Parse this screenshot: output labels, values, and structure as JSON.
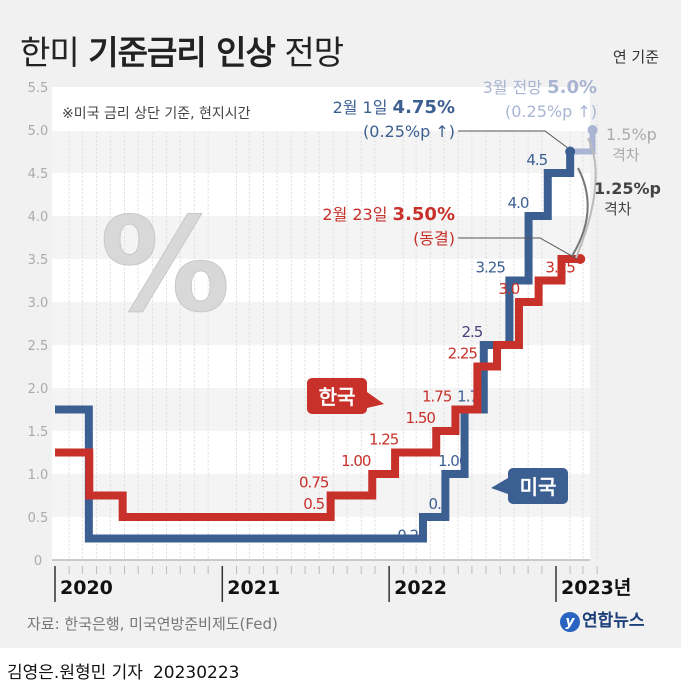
{
  "title": {
    "prefix": "한미",
    "bold": "기준금리 인상",
    "suffix": "전망"
  },
  "unit_note": "연 기준",
  "note": "※미국 금리 상단 기준, 현지시간",
  "source": "자료: 한국은행, 미국연방준비제도(Fed)",
  "logo": {
    "mark": "y",
    "text": "연합뉴스"
  },
  "credit": {
    "authors": "김영은.원형민 기자",
    "date": "20230223"
  },
  "colors": {
    "us": "#3c5f92",
    "korea": "#c8302a",
    "projection": "#a9b5d3",
    "gap": "#8a8a8a"
  },
  "chart_data": {
    "type": "line",
    "step": true,
    "ylim": [
      0,
      5.5
    ],
    "yticks": [
      "0",
      "0.5",
      "1.0",
      "1.5",
      "2.0",
      "2.5",
      "3.0",
      "3.5",
      "4.0",
      "4.5",
      "5.0",
      "5.5"
    ],
    "xlim": [
      "2020-01-01",
      "2023-04-01"
    ],
    "xticks": [
      "2020",
      "2021",
      "2022",
      "2023년"
    ],
    "grid": "horizontal bands",
    "series": [
      {
        "name": "미국",
        "key": "us",
        "points": [
          [
            "2020-01-01",
            1.75
          ],
          [
            "2020-03-15",
            0.25
          ],
          [
            "2022-03-16",
            0.5
          ],
          [
            "2022-05-04",
            1.0
          ],
          [
            "2022-06-15",
            1.75
          ],
          [
            "2022-07-27",
            2.5
          ],
          [
            "2022-09-21",
            3.25
          ],
          [
            "2022-11-02",
            4.0
          ],
          [
            "2022-12-14",
            4.5
          ],
          [
            "2023-02-01",
            4.75
          ]
        ],
        "labels": [
          [
            "2022-02-20",
            0.25,
            "0.25"
          ],
          [
            "2022-04-20",
            0.5,
            "0.5"
          ],
          [
            "2022-05-20",
            1.0,
            "1.00"
          ],
          [
            "2022-07-01",
            1.75,
            "1.75"
          ],
          [
            "2022-07-01",
            2.5,
            "2.5"
          ],
          [
            "2022-08-10",
            3.25,
            "3.25"
          ],
          [
            "2022-10-10",
            4.0,
            "4.0"
          ],
          [
            "2022-11-20",
            4.5,
            "4.5"
          ]
        ]
      },
      {
        "name": "한국",
        "key": "korea",
        "points": [
          [
            "2020-01-01",
            1.25
          ],
          [
            "2020-03-16",
            0.75
          ],
          [
            "2020-05-28",
            0.5
          ],
          [
            "2021-08-26",
            0.75
          ],
          [
            "2021-11-25",
            1.0
          ],
          [
            "2022-01-14",
            1.25
          ],
          [
            "2022-04-14",
            1.5
          ],
          [
            "2022-05-26",
            1.75
          ],
          [
            "2022-07-13",
            2.25
          ],
          [
            "2022-08-25",
            2.5
          ],
          [
            "2022-10-12",
            3.0
          ],
          [
            "2022-11-24",
            3.25
          ],
          [
            "2023-01-13",
            3.5
          ],
          [
            "2023-02-23",
            3.5
          ]
        ],
        "labels": [
          [
            "2021-07-20",
            0.5,
            "0.5"
          ],
          [
            "2021-07-20",
            0.75,
            "0.75"
          ],
          [
            "2021-10-20",
            1.0,
            "1.00"
          ],
          [
            "2021-12-20",
            1.25,
            "1.25"
          ],
          [
            "2022-03-10",
            1.5,
            "1.50"
          ],
          [
            "2022-04-15",
            1.75,
            "1.75"
          ],
          [
            "2022-06-10",
            2.25,
            "2.25"
          ],
          [
            "2022-09-20",
            3.0,
            "3.0"
          ],
          [
            "2023-01-10",
            3.25,
            "3.25"
          ]
        ]
      }
    ],
    "projection": {
      "from": [
        "2023-02-01",
        4.75
      ],
      "to": [
        "2023-03-22",
        5.0
      ]
    },
    "annotations": {
      "us_latest": {
        "date_text": "2월 1일",
        "value_text": "4.75%",
        "change": "(0.25%p ↑)"
      },
      "us_projection": {
        "date_text": "3월 전망",
        "value_text": "5.0%",
        "change": "(0.25%p ↑)"
      },
      "korea_latest": {
        "date_text": "2월 23일",
        "value_text": "3.50%",
        "change": "(동결)"
      },
      "gap_projected": {
        "value": "1.5%p",
        "label": "격차"
      },
      "gap_current": {
        "value": "1.25%p",
        "label": "격차"
      }
    },
    "legend": {
      "korea": "한국",
      "us": "미국"
    }
  }
}
